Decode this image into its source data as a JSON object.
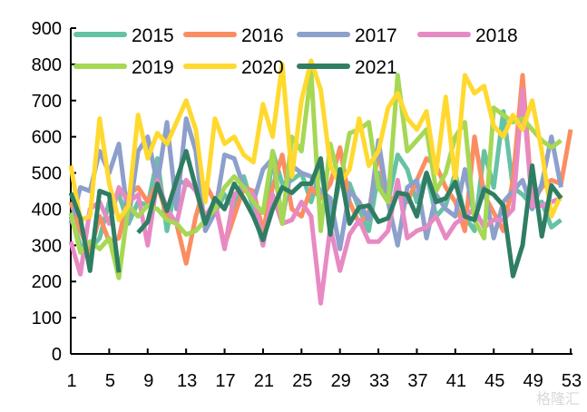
{
  "chart_data": {
    "type": "line",
    "title": "",
    "xlabel": "",
    "ylabel": "",
    "xlim": [
      1,
      53
    ],
    "ylim": [
      0,
      900
    ],
    "yticks": [
      0,
      100,
      200,
      300,
      400,
      500,
      600,
      700,
      800,
      900
    ],
    "xticks": [
      1,
      5,
      9,
      13,
      17,
      21,
      25,
      29,
      33,
      37,
      41,
      45,
      49,
      53
    ],
    "grid": false,
    "legend_position": "top",
    "series": [
      {
        "name": "2015",
        "color": "#66c2a5",
        "values": [
          380,
          300,
          290,
          320,
          420,
          440,
          360,
          420,
          410,
          540,
          340,
          480,
          470,
          460,
          350,
          390,
          440,
          400,
          490,
          400,
          300,
          560,
          470,
          480,
          500,
          420,
          510,
          360,
          480,
          470,
          400,
          340,
          500,
          420,
          550,
          510,
          420,
          500,
          380,
          410,
          500,
          380,
          340,
          560,
          460,
          670,
          460,
          440,
          410,
          420,
          350,
          370,
          null
        ]
      },
      {
        "name": "2016",
        "color": "#fc8d62",
        "values": [
          420,
          340,
          280,
          380,
          310,
          320,
          440,
          460,
          420,
          470,
          380,
          360,
          250,
          380,
          470,
          420,
          300,
          380,
          460,
          450,
          340,
          460,
          550,
          400,
          380,
          460,
          430,
          470,
          570,
          420,
          360,
          390,
          560,
          420,
          440,
          420,
          480,
          540,
          520,
          460,
          420,
          340,
          600,
          440,
          390,
          340,
          480,
          770,
          420,
          460,
          480,
          470,
          620
        ]
      },
      {
        "name": "2017",
        "color": "#8da0cb",
        "values": [
          360,
          460,
          450,
          560,
          500,
          580,
          370,
          560,
          600,
          470,
          640,
          400,
          650,
          560,
          340,
          390,
          550,
          540,
          460,
          420,
          510,
          540,
          370,
          520,
          500,
          490,
          450,
          430,
          290,
          450,
          420,
          370,
          590,
          420,
          300,
          460,
          480,
          320,
          440,
          400,
          380,
          510,
          380,
          460,
          320,
          420,
          450,
          480,
          400,
          470,
          600,
          460,
          null
        ]
      },
      {
        "name": "2018",
        "color": "#e78ac3",
        "values": [
          310,
          220,
          400,
          420,
          360,
          460,
          420,
          440,
          300,
          480,
          400,
          360,
          480,
          450,
          380,
          420,
          290,
          440,
          460,
          440,
          300,
          440,
          360,
          370,
          420,
          380,
          140,
          350,
          230,
          330,
          370,
          310,
          310,
          340,
          480,
          320,
          340,
          350,
          380,
          320,
          360,
          380,
          400,
          350,
          370,
          370,
          400,
          730,
          410,
          410,
          420,
          430,
          null
        ]
      },
      {
        "name": "2019",
        "color": "#a6d854",
        "values": [
          390,
          280,
          310,
          290,
          320,
          210,
          410,
          380,
          410,
          400,
          370,
          360,
          330,
          340,
          370,
          400,
          460,
          490,
          460,
          420,
          390,
          560,
          360,
          600,
          560,
          780,
          340,
          580,
          470,
          610,
          620,
          640,
          460,
          420,
          770,
          560,
          590,
          620,
          450,
          500,
          600,
          640,
          370,
          320,
          680,
          660,
          640,
          650,
          620,
          590,
          570,
          590,
          null
        ]
      },
      {
        "name": "2020",
        "color": "#ffd92f",
        "values": [
          520,
          370,
          380,
          650,
          470,
          370,
          410,
          660,
          540,
          610,
          580,
          640,
          700,
          620,
          420,
          650,
          580,
          600,
          550,
          530,
          690,
          600,
          800,
          490,
          700,
          810,
          730,
          520,
          470,
          510,
          650,
          520,
          560,
          680,
          720,
          650,
          620,
          670,
          500,
          710,
          480,
          770,
          720,
          740,
          630,
          600,
          660,
          620,
          700,
          560,
          380,
          440,
          null
        ]
      },
      {
        "name": "2021",
        "color": "#2f7e63",
        "values": [
          445,
          375,
          230,
          450,
          440,
          225,
          null,
          335,
          365,
          470,
          395,
          480,
          560,
          460,
          360,
          430,
          400,
          470,
          430,
          380,
          315,
          400,
          460,
          445,
          470,
          470,
          540,
          330,
          510,
          360,
          405,
          410,
          365,
          375,
          445,
          440,
          380,
          500,
          420,
          430,
          475,
          380,
          370,
          455,
          440,
          410,
          215,
          300,
          520,
          325,
          465,
          430,
          null
        ]
      }
    ]
  },
  "watermark": "格隆汇"
}
